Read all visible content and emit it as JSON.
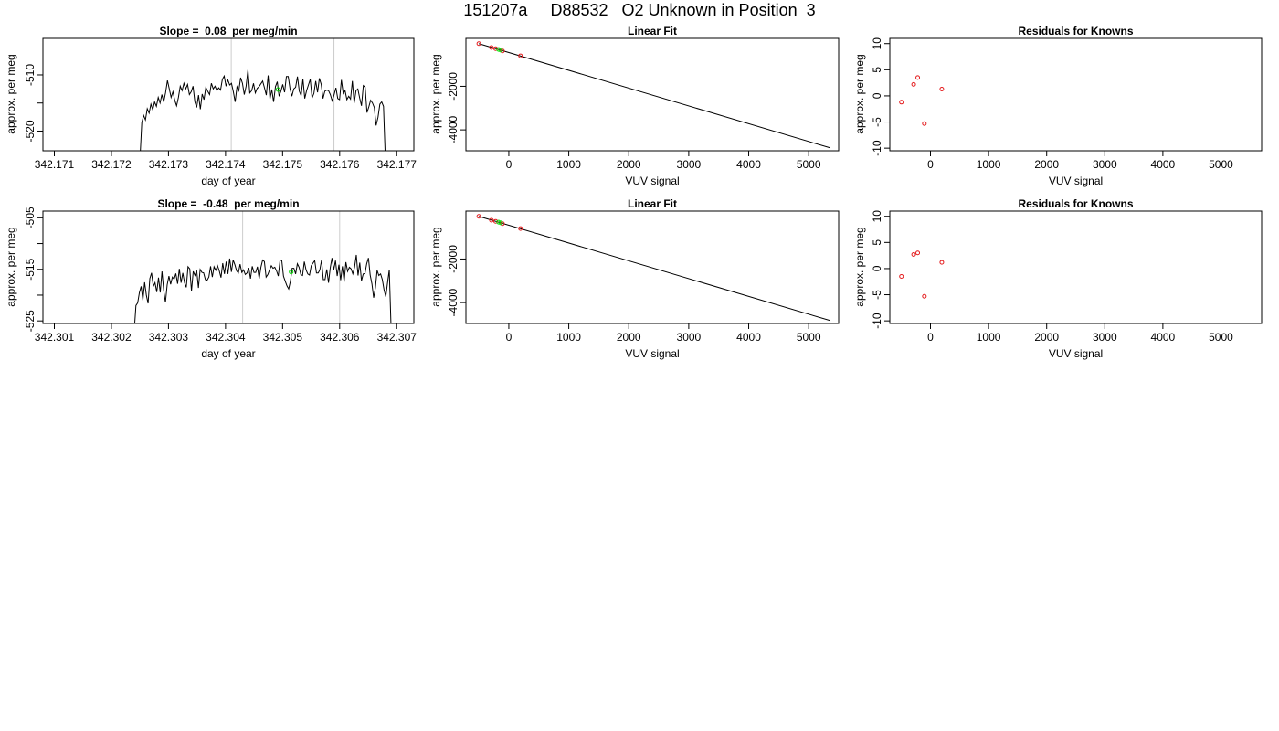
{
  "title": "151207a     D88532   O2 Unknown in Position  3",
  "colors": {
    "line": "#000000",
    "known": "#e41a1c",
    "unknown": "#00dd00",
    "vline": "#cccccc"
  },
  "chart_data": [
    {
      "id": "ts1",
      "type": "line",
      "title": "Slope =  0.08  per meg/min",
      "xlabel": "day of year",
      "ylabel": "approx. per meg",
      "xlim": [
        342.1708,
        342.1773
      ],
      "ylim": [
        -523.5,
        -503.5
      ],
      "xticks": [
        342.171,
        342.172,
        342.173,
        342.174,
        342.175,
        342.176,
        342.177
      ],
      "xtick_labels": [
        "342.171",
        "342.172",
        "342.173",
        "342.174",
        "342.175",
        "342.176",
        "342.177"
      ],
      "yticks": [
        -510,
        -515,
        -520
      ],
      "ytick_labels": [
        "-510",
        "",
        "-520"
      ],
      "vlines": [
        342.1741,
        342.1759
      ],
      "series": {
        "x_start": 342.1725,
        "x_end": 342.1768,
        "y": [
          -525,
          -518.5,
          -517.2,
          -518,
          -516,
          -516.8,
          -515.2,
          -516.2,
          -514.8,
          -515.6,
          -514,
          -515,
          -513.5,
          -514.8,
          -513.2,
          -511,
          -512.5,
          -514,
          -513,
          -514.5,
          -515.5,
          -514,
          -512,
          -512.8,
          -511.5,
          -512.5,
          -511.7,
          -513.5,
          -513,
          -512,
          -514.8,
          -515.8,
          -513.6,
          -516.1,
          -513.4,
          -514.4,
          -512.2,
          -512.9,
          -513.5,
          -511.5,
          -512.5,
          -512,
          -512.8,
          -512.3,
          -512.7,
          -510.8,
          -510.2,
          -512,
          -510.9,
          -511.8,
          -511.5,
          -513,
          -514.8,
          -512.1,
          -512.8,
          -510.5,
          -511.5,
          -513.5,
          -512,
          -509.1,
          -513.2,
          -512.8,
          -511.5,
          -513.2,
          -512.4,
          -512.1,
          -511.6,
          -511.1,
          -512.3,
          -513.6,
          -510.1,
          -514.3,
          -512.6,
          -514.8,
          -512.1,
          -511.2,
          -513.8,
          -512.9,
          -511.7,
          -513.1,
          -510.3,
          -510.3,
          -512.5,
          -513.8,
          -512.5,
          -512.2,
          -510.3,
          -512.9,
          -513.7,
          -510.7,
          -514.2,
          -512.8,
          -511.8,
          -510.8,
          -514.1,
          -513.3,
          -511.1,
          -513.1,
          -510.6,
          -511.7,
          -514.2,
          -512.9,
          -512.7,
          -512.8,
          -513.5,
          -514.6,
          -513.6,
          -512.3,
          -514.2,
          -514.4,
          -510.9,
          -513.3,
          -512.8,
          -514.4,
          -513.8,
          -514.3,
          -511.1,
          -515,
          -512.8,
          -512.5,
          -514.1,
          -515.5,
          -511.9,
          -512.2,
          -516.7,
          -515.7,
          -514.5,
          -515,
          -515.8,
          -519,
          -517.5,
          -515.2,
          -514.8,
          -515.6,
          -525
        ]
      },
      "unknown_points": [
        {
          "x": 342.17492,
          "y": -512.6
        }
      ]
    },
    {
      "id": "fit1",
      "type": "scatter",
      "title": "Linear Fit",
      "xlabel": "VUV signal",
      "ylabel": "approx. per meg",
      "xlim": [
        -715,
        5500
      ],
      "ylim": [
        -4960,
        200
      ],
      "xticks": [
        0,
        1000,
        2000,
        3000,
        4000,
        5000
      ],
      "xtick_labels": [
        "0",
        "1000",
        "2000",
        "3000",
        "4000",
        "5000"
      ],
      "yticks": [
        -2000,
        -4000
      ],
      "ytick_labels": [
        "-2000",
        "-4000"
      ],
      "fit_line": {
        "x": [
          -500,
          5350
        ],
        "y": [
          -40,
          -4820
        ]
      },
      "known_points": [
        {
          "x": -500,
          "y": -40
        },
        {
          "x": -290,
          "y": -220
        },
        {
          "x": -220,
          "y": -270
        },
        {
          "x": -105,
          "y": -375
        },
        {
          "x": 195,
          "y": -600
        }
      ],
      "unknown_points": [
        {
          "x": -170,
          "y": -310
        },
        {
          "x": -135,
          "y": -340
        }
      ]
    },
    {
      "id": "res1",
      "type": "scatter",
      "title": "Residuals for Knowns",
      "xlabel": "VUV signal",
      "ylabel": "approx. per meg",
      "xlim": [
        -700,
        5700
      ],
      "ylim": [
        -10.5,
        11
      ],
      "xticks": [
        0,
        1000,
        2000,
        3000,
        4000,
        5000
      ],
      "xtick_labels": [
        "0",
        "1000",
        "2000",
        "3000",
        "4000",
        "5000"
      ],
      "yticks": [
        10,
        5,
        0,
        -5,
        -10
      ],
      "ytick_labels": [
        "10",
        "5",
        "0",
        "-5",
        "-10"
      ],
      "known_points": [
        {
          "x": -500,
          "y": -1.2
        },
        {
          "x": -290,
          "y": 2.2
        },
        {
          "x": -220,
          "y": 3.5
        },
        {
          "x": -105,
          "y": -5.3
        },
        {
          "x": 195,
          "y": 1.3
        }
      ]
    },
    {
      "id": "ts2",
      "type": "line",
      "title": "Slope =  -0.48  per meg/min",
      "xlabel": "day of year",
      "ylabel": "approx. per meg",
      "xlim": [
        342.3008,
        342.3073
      ],
      "ylim": [
        -525.5,
        -503.7
      ],
      "xticks": [
        342.301,
        342.302,
        342.303,
        342.304,
        342.305,
        342.306,
        342.307
      ],
      "xtick_labels": [
        "342.301",
        "342.302",
        "342.303",
        "342.304",
        "342.305",
        "342.306",
        "342.307"
      ],
      "yticks": [
        -505,
        -510,
        -515,
        -520,
        -525
      ],
      "ytick_labels": [
        "-505",
        "",
        "-515",
        "",
        "-525"
      ],
      "vlines": [
        342.3043,
        342.306
      ],
      "series": {
        "x_start": 342.3024,
        "x_end": 342.3069,
        "y": [
          -527,
          -522,
          -521.5,
          -519.5,
          -518.3,
          -521,
          -517.5,
          -520,
          -521.6,
          -516.8,
          -515.7,
          -518.3,
          -517.6,
          -519.4,
          -516.6,
          -519.5,
          -515.4,
          -519.1,
          -521.4,
          -518,
          -516.3,
          -517.9,
          -516.5,
          -516.9,
          -515.8,
          -517.8,
          -514.9,
          -517.6,
          -515.7,
          -517.6,
          -518.5,
          -514.5,
          -514.9,
          -519.2,
          -515.4,
          -516.2,
          -515.2,
          -518.6,
          -515,
          -515.6,
          -515.7,
          -517,
          -517.1,
          -516.5,
          -514.4,
          -516.5,
          -514.5,
          -515.2,
          -514.3,
          -515.3,
          -516.6,
          -513.8,
          -515.9,
          -513.5,
          -515.9,
          -512.9,
          -515.5,
          -513.2,
          -514.1,
          -515.3,
          -515.7,
          -514,
          -515.6,
          -515.1,
          -516,
          -515.7,
          -514.7,
          -516.8,
          -514.4,
          -515.6,
          -515.6,
          -514.5,
          -516.8,
          -514.6,
          -513.2,
          -513.5,
          -516.5,
          -516,
          -515.1,
          -514.3,
          -514.8,
          -514.6,
          -515.3,
          -516.3,
          -513.3,
          -513.2,
          -516.3,
          -517.3,
          -518.2,
          -518.8,
          -517.3,
          -514.8,
          -514.8,
          -515.9,
          -513.9,
          -514.6,
          -516,
          -516.2,
          -513.5,
          -515.1,
          -515.9,
          -516.1,
          -514.3,
          -513.8,
          -513.3,
          -515.7,
          -515.7,
          -515.1,
          -513.2,
          -517,
          -517,
          -515,
          -517.6,
          -514.7,
          -512.8,
          -515.1,
          -513.3,
          -516.3,
          -514.1,
          -517.1,
          -514.4,
          -517.4,
          -513.6,
          -515.4,
          -514.6,
          -514.9,
          -515.9,
          -514.6,
          -512.2,
          -516.2,
          -513.7,
          -517.2,
          -515.9,
          -515.8,
          -513.9,
          -512.8,
          -516.1,
          -517.8,
          -520.5,
          -518.6,
          -515.2,
          -516.2,
          -515.9,
          -517,
          -519,
          -520.3,
          -517.6,
          -515.1,
          -526
        ]
      },
      "unknown_points": [
        {
          "x": 342.30515,
          "y": -515.5
        }
      ]
    },
    {
      "id": "fit2",
      "type": "scatter",
      "title": "Linear Fit",
      "xlabel": "VUV signal",
      "ylabel": "approx. per meg",
      "xlim": [
        -715,
        5500
      ],
      "ylim": [
        -4960,
        200
      ],
      "xticks": [
        0,
        1000,
        2000,
        3000,
        4000,
        5000
      ],
      "xtick_labels": [
        "0",
        "1000",
        "2000",
        "3000",
        "4000",
        "5000"
      ],
      "yticks": [
        -2000,
        -4000
      ],
      "ytick_labels": [
        "-2000",
        "-4000"
      ],
      "fit_line": {
        "x": [
          -500,
          5350
        ],
        "y": [
          -40,
          -4820
        ]
      },
      "known_points": [
        {
          "x": -500,
          "y": -40
        },
        {
          "x": -290,
          "y": -220
        },
        {
          "x": -220,
          "y": -270
        },
        {
          "x": -105,
          "y": -375
        },
        {
          "x": 195,
          "y": -600
        }
      ],
      "unknown_points": [
        {
          "x": -170,
          "y": -310
        },
        {
          "x": -135,
          "y": -340
        }
      ]
    },
    {
      "id": "res2",
      "type": "scatter",
      "title": "Residuals for Knowns",
      "xlabel": "VUV signal",
      "ylabel": "approx. per meg",
      "xlim": [
        -700,
        5700
      ],
      "ylim": [
        -10.5,
        11
      ],
      "xticks": [
        0,
        1000,
        2000,
        3000,
        4000,
        5000
      ],
      "xtick_labels": [
        "0",
        "1000",
        "2000",
        "3000",
        "4000",
        "5000"
      ],
      "yticks": [
        10,
        5,
        0,
        -5,
        -10
      ],
      "ytick_labels": [
        "10",
        "5",
        "0",
        "-5",
        "-10"
      ],
      "known_points": [
        {
          "x": -500,
          "y": -1.5
        },
        {
          "x": -290,
          "y": 2.7
        },
        {
          "x": -220,
          "y": 3.0
        },
        {
          "x": -105,
          "y": -5.3
        },
        {
          "x": 195,
          "y": 1.2
        }
      ]
    }
  ]
}
